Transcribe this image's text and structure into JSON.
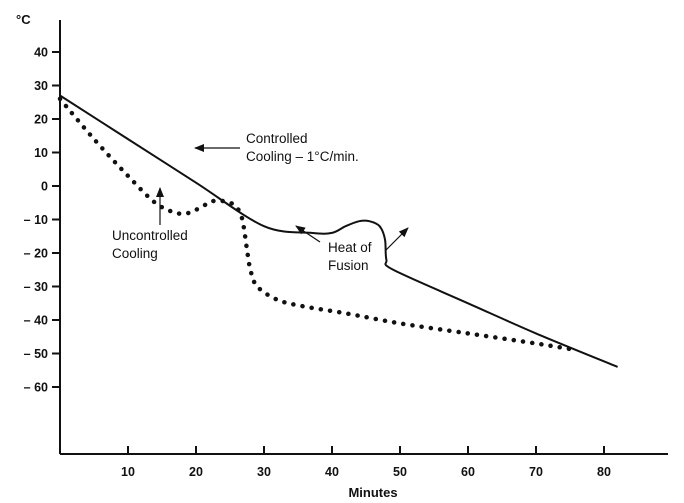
{
  "chart_data": {
    "type": "line",
    "title": "",
    "xlabel": "Minutes",
    "ylabel": "°C",
    "xlim": [
      0,
      82
    ],
    "ylim": [
      -80,
      50
    ],
    "x_ticks": [
      10,
      20,
      30,
      40,
      50,
      60,
      70,
      80
    ],
    "y_ticks": [
      40,
      30,
      20,
      10,
      0,
      -10,
      -20,
      -30,
      -40,
      -50,
      -60
    ],
    "grid": false,
    "series": [
      {
        "style": "solid",
        "x": [
          0,
          10,
          20,
          30,
          37,
          40,
          42,
          44,
          45.5,
          47,
          47.8,
          48,
          49,
          60,
          70,
          82
        ],
        "y": [
          27,
          14,
          1,
          -12,
          -14,
          -14,
          -12,
          -10.5,
          -10.5,
          -12,
          -16,
          -22,
          -25,
          -35,
          -44,
          -54
        ]
      },
      {
        "style": "dotted",
        "x": [
          0,
          5,
          10,
          14,
          17,
          19,
          21,
          22.5,
          24,
          25.5,
          26.5,
          27,
          27.5,
          28,
          29,
          32,
          36,
          42,
          50,
          60,
          70,
          76
        ],
        "y": [
          26,
          14,
          3,
          -5,
          -8,
          -8,
          -6,
          -4.5,
          -4.5,
          -5.5,
          -8,
          -12,
          -19,
          -25,
          -30,
          -34,
          -36,
          -38,
          -41,
          -44,
          -47,
          -49
        ]
      }
    ],
    "annotations": [
      {
        "lines": [
          "Controlled",
          "Cooling  – 1°C/min."
        ]
      },
      {
        "lines": [
          "Uncontrolled",
          "Cooling"
        ]
      },
      {
        "lines": [
          "Heat of",
          "Fusion"
        ]
      }
    ]
  }
}
